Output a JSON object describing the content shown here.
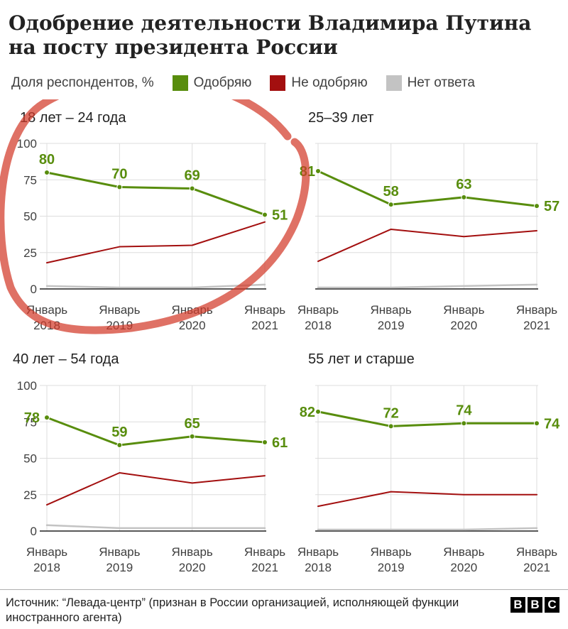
{
  "title": "Одобрение деятельности Владимира Путина на посту президента России",
  "legend": {
    "label": "Доля респондентов, %",
    "items": [
      {
        "name": "Одобряю",
        "color": "#588d0d"
      },
      {
        "name": "Не одобряю",
        "color": "#a30f0f"
      },
      {
        "name": "Нет ответа",
        "color": "#c3c3c3"
      }
    ]
  },
  "source": "Источник: “Левада-центр” (признан в России организацией, исполняющей функции иностранного агента)",
  "brand": [
    "B",
    "B",
    "C"
  ],
  "chart_data": {
    "type": "line",
    "x": [
      "Январь 2018",
      "Январь 2019",
      "Январь 2020",
      "Январь 2021"
    ],
    "ylim": [
      0,
      100
    ],
    "yticks": [
      0,
      25,
      50,
      75,
      100
    ],
    "grid": true,
    "panels": [
      {
        "title": "18 лет – 24 года",
        "series": [
          {
            "name": "Одобряю",
            "color": "#588d0d",
            "values": [
              80,
              70,
              69,
              51
            ],
            "labels": [
              "80",
              "70",
              "69",
              "51"
            ]
          },
          {
            "name": "Не одобряю",
            "color": "#a30f0f",
            "values": [
              18,
              29,
              30,
              46
            ]
          },
          {
            "name": "Нет ответа",
            "color": "#c3c3c3",
            "values": [
              2,
              1,
              1,
              3
            ]
          }
        ]
      },
      {
        "title": "25–39 лет",
        "series": [
          {
            "name": "Одобряю",
            "color": "#588d0d",
            "values": [
              81,
              58,
              63,
              57
            ],
            "labels": [
              "81",
              "58",
              "63",
              "57"
            ]
          },
          {
            "name": "Не одобряю",
            "color": "#a30f0f",
            "values": [
              19,
              41,
              36,
              40
            ]
          },
          {
            "name": "Нет ответа",
            "color": "#c3c3c3",
            "values": [
              1,
              1,
              2,
              3
            ]
          }
        ]
      },
      {
        "title": "40 лет – 54 года",
        "series": [
          {
            "name": "Одобряю",
            "color": "#588d0d",
            "values": [
              78,
              59,
              65,
              61
            ],
            "labels": [
              "78",
              "59",
              "65",
              "61"
            ]
          },
          {
            "name": "Не одобряю",
            "color": "#a30f0f",
            "values": [
              18,
              40,
              33,
              38
            ]
          },
          {
            "name": "Нет ответа",
            "color": "#c3c3c3",
            "values": [
              4,
              2,
              2,
              2
            ]
          }
        ]
      },
      {
        "title": "55 лет и старше",
        "series": [
          {
            "name": "Одобряю",
            "color": "#588d0d",
            "values": [
              82,
              72,
              74,
              74
            ],
            "labels": [
              "82",
              "72",
              "74",
              "74"
            ]
          },
          {
            "name": "Не одобряю",
            "color": "#a30f0f",
            "values": [
              17,
              27,
              25,
              25
            ]
          },
          {
            "name": "Нет ответа",
            "color": "#c3c3c3",
            "values": [
              1,
              1,
              1,
              2
            ]
          }
        ]
      }
    ]
  }
}
